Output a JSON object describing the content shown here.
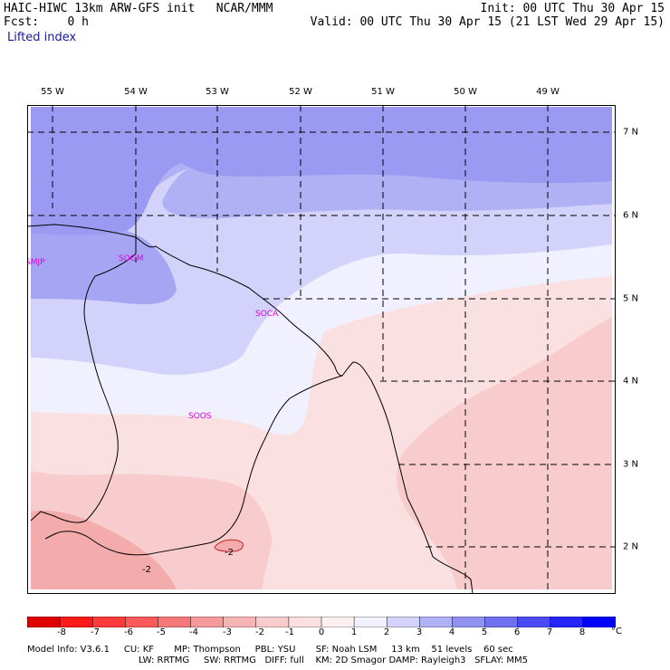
{
  "header": {
    "left_line1": "HAIC-HIWC 13km ARW-GFS init   NCAR/MMM",
    "left_line2": "Fcst:    0 h",
    "field": "Lifted index",
    "right_line1": "Init: 00 UTC Thu 30 Apr 15",
    "right_line2": "Valid: 00 UTC Thu 30 Apr 15 (21 LST Wed 29 Apr 15)"
  },
  "map": {
    "lon_labels": [
      "55 W",
      "54 W",
      "53 W",
      "52 W",
      "51 W",
      "50 W",
      "49 W"
    ],
    "lat_labels": [
      "7 N",
      "6 N",
      "5 N",
      "4 N",
      "3 N",
      "2 N"
    ],
    "stations": [
      "SMJP",
      "SOGM",
      "SOCA",
      "SOOS"
    ],
    "contour_labels": [
      "-2",
      "-2"
    ]
  },
  "colorbar": {
    "labels": [
      "-8",
      "-7",
      "-6",
      "-5",
      "-4",
      "-3",
      "-2",
      "-1",
      "0",
      "1",
      "2",
      "3",
      "4",
      "5",
      "6",
      "7",
      "8"
    ],
    "unit": "°C",
    "colors": [
      "#ff1a1a",
      "#ff3a3a",
      "#ff5a5a",
      "#f57878",
      "#f59a9a",
      "#f5b5b5",
      "#f8cccc",
      "#fae0e0",
      "#fff0f0",
      "#f0f0ff",
      "#d2d2fa",
      "#b0b0f5",
      "#9090f0",
      "#7070f0",
      "#4a4af5",
      "#2525fa",
      "#0000ff"
    ]
  },
  "footer": {
    "line1": "Model Info: V3.6.1     CU: KF       MP: Thompson     PBL: YSU       SF: Noah LSM     13 km    51 levels    60 sec",
    "line2": "LW: RRTMG     SW: RRTMG   DIFF: full    KM: 2D Smagor DAMP: Rayleigh3   SFLAY: MM5"
  }
}
